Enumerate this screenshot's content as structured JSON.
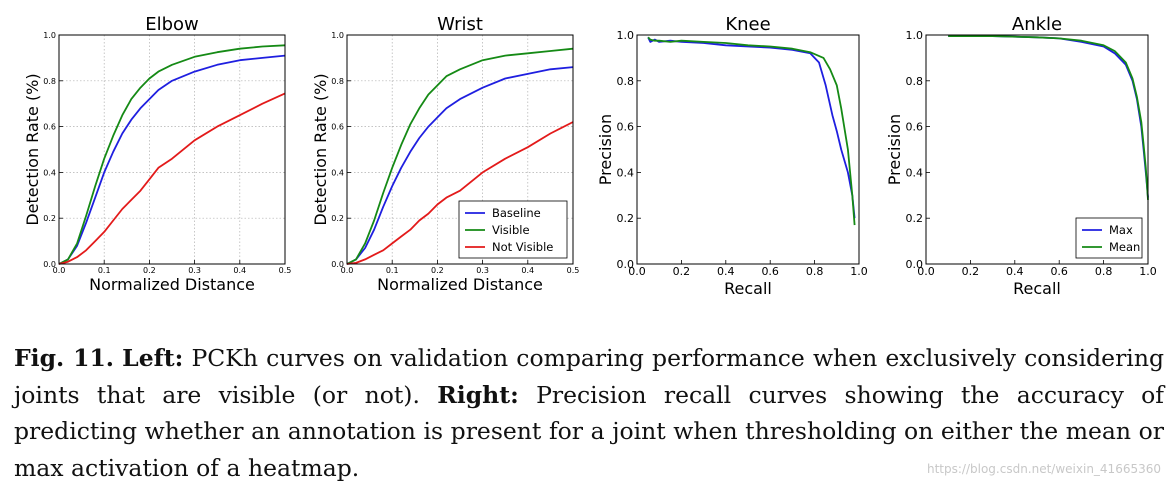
{
  "chart_data": [
    {
      "type": "line",
      "title": "Elbow",
      "xlabel": "Normalized Distance",
      "ylabel": "Detection Rate (%)",
      "xlim": [
        0,
        0.5
      ],
      "ylim": [
        0,
        1.0
      ],
      "xticks": [
        "0.0",
        "0.1",
        "0.2",
        "0.3",
        "0.4",
        "0.5"
      ],
      "yticks": [
        "0.0",
        "0.2",
        "0.4",
        "0.6",
        "0.8",
        "1.0"
      ],
      "grid": true,
      "series": [
        {
          "name": "Baseline",
          "color": "#1f1fe0",
          "points": [
            [
              0,
              0
            ],
            [
              0.02,
              0.02
            ],
            [
              0.04,
              0.08
            ],
            [
              0.06,
              0.18
            ],
            [
              0.08,
              0.29
            ],
            [
              0.1,
              0.4
            ],
            [
              0.12,
              0.49
            ],
            [
              0.14,
              0.57
            ],
            [
              0.16,
              0.63
            ],
            [
              0.18,
              0.68
            ],
            [
              0.2,
              0.72
            ],
            [
              0.22,
              0.76
            ],
            [
              0.25,
              0.8
            ],
            [
              0.3,
              0.84
            ],
            [
              0.35,
              0.87
            ],
            [
              0.4,
              0.89
            ],
            [
              0.45,
              0.9
            ],
            [
              0.5,
              0.91
            ]
          ]
        },
        {
          "name": "Visible",
          "color": "#158a15",
          "points": [
            [
              0,
              0
            ],
            [
              0.02,
              0.02
            ],
            [
              0.04,
              0.09
            ],
            [
              0.06,
              0.21
            ],
            [
              0.08,
              0.34
            ],
            [
              0.1,
              0.46
            ],
            [
              0.12,
              0.56
            ],
            [
              0.14,
              0.65
            ],
            [
              0.16,
              0.72
            ],
            [
              0.18,
              0.77
            ],
            [
              0.2,
              0.81
            ],
            [
              0.22,
              0.84
            ],
            [
              0.25,
              0.87
            ],
            [
              0.3,
              0.905
            ],
            [
              0.35,
              0.925
            ],
            [
              0.4,
              0.94
            ],
            [
              0.45,
              0.95
            ],
            [
              0.5,
              0.955
            ]
          ]
        },
        {
          "name": "Not Visible",
          "color": "#e31a1a",
          "points": [
            [
              0,
              0
            ],
            [
              0.02,
              0.01
            ],
            [
              0.04,
              0.03
            ],
            [
              0.06,
              0.06
            ],
            [
              0.08,
              0.1
            ],
            [
              0.1,
              0.14
            ],
            [
              0.12,
              0.19
            ],
            [
              0.14,
              0.24
            ],
            [
              0.16,
              0.28
            ],
            [
              0.18,
              0.32
            ],
            [
              0.2,
              0.37
            ],
            [
              0.22,
              0.42
            ],
            [
              0.25,
              0.46
            ],
            [
              0.3,
              0.54
            ],
            [
              0.35,
              0.6
            ],
            [
              0.4,
              0.65
            ],
            [
              0.45,
              0.7
            ],
            [
              0.5,
              0.745
            ]
          ]
        }
      ]
    },
    {
      "type": "line",
      "title": "Wrist",
      "xlabel": "Normalized Distance",
      "ylabel": "Detection Rate (%)",
      "xlim": [
        0,
        0.5
      ],
      "ylim": [
        0,
        1.0
      ],
      "xticks": [
        "0.0",
        "0.1",
        "0.2",
        "0.3",
        "0.4",
        "0.5"
      ],
      "yticks": [
        "0.0",
        "0.2",
        "0.4",
        "0.6",
        "0.8",
        "1.0"
      ],
      "grid": true,
      "legend": "bottom-right",
      "series": [
        {
          "name": "Baseline",
          "color": "#1f1fe0",
          "points": [
            [
              0,
              0
            ],
            [
              0.02,
              0.02
            ],
            [
              0.04,
              0.07
            ],
            [
              0.06,
              0.15
            ],
            [
              0.08,
              0.25
            ],
            [
              0.1,
              0.34
            ],
            [
              0.12,
              0.42
            ],
            [
              0.14,
              0.49
            ],
            [
              0.16,
              0.55
            ],
            [
              0.18,
              0.6
            ],
            [
              0.2,
              0.64
            ],
            [
              0.22,
              0.68
            ],
            [
              0.25,
              0.72
            ],
            [
              0.3,
              0.77
            ],
            [
              0.35,
              0.81
            ],
            [
              0.4,
              0.83
            ],
            [
              0.45,
              0.85
            ],
            [
              0.5,
              0.86
            ]
          ]
        },
        {
          "name": "Visible",
          "color": "#158a15",
          "points": [
            [
              0,
              0
            ],
            [
              0.02,
              0.02
            ],
            [
              0.04,
              0.09
            ],
            [
              0.06,
              0.19
            ],
            [
              0.08,
              0.31
            ],
            [
              0.1,
              0.42
            ],
            [
              0.12,
              0.52
            ],
            [
              0.14,
              0.61
            ],
            [
              0.16,
              0.68
            ],
            [
              0.18,
              0.74
            ],
            [
              0.2,
              0.78
            ],
            [
              0.22,
              0.82
            ],
            [
              0.25,
              0.85
            ],
            [
              0.3,
              0.89
            ],
            [
              0.35,
              0.91
            ],
            [
              0.4,
              0.92
            ],
            [
              0.45,
              0.93
            ],
            [
              0.5,
              0.94
            ]
          ]
        },
        {
          "name": "Not Visible",
          "color": "#e31a1a",
          "points": [
            [
              0,
              0
            ],
            [
              0.02,
              0.005
            ],
            [
              0.04,
              0.02
            ],
            [
              0.06,
              0.04
            ],
            [
              0.08,
              0.06
            ],
            [
              0.1,
              0.09
            ],
            [
              0.12,
              0.12
            ],
            [
              0.14,
              0.15
            ],
            [
              0.16,
              0.19
            ],
            [
              0.18,
              0.22
            ],
            [
              0.2,
              0.26
            ],
            [
              0.22,
              0.29
            ],
            [
              0.25,
              0.32
            ],
            [
              0.3,
              0.4
            ],
            [
              0.35,
              0.46
            ],
            [
              0.4,
              0.51
            ],
            [
              0.45,
              0.57
            ],
            [
              0.5,
              0.62
            ]
          ]
        }
      ]
    },
    {
      "type": "line",
      "title": "Knee",
      "xlabel": "Recall",
      "ylabel": "Precision",
      "xlim": [
        0,
        1.0
      ],
      "ylim": [
        0,
        1.0
      ],
      "xticks": [
        "0.0",
        "0.2",
        "0.4",
        "0.6",
        "0.8",
        "1.0"
      ],
      "yticks": [
        "0.0",
        "0.2",
        "0.4",
        "0.6",
        "0.8",
        "1.0"
      ],
      "grid": false,
      "series": [
        {
          "name": "Max",
          "color": "#1f1fe0",
          "points": [
            [
              0.05,
              0.99
            ],
            [
              0.06,
              0.97
            ],
            [
              0.08,
              0.98
            ],
            [
              0.1,
              0.97
            ],
            [
              0.15,
              0.975
            ],
            [
              0.2,
              0.97
            ],
            [
              0.3,
              0.965
            ],
            [
              0.4,
              0.955
            ],
            [
              0.5,
              0.95
            ],
            [
              0.6,
              0.945
            ],
            [
              0.7,
              0.935
            ],
            [
              0.78,
              0.92
            ],
            [
              0.82,
              0.88
            ],
            [
              0.85,
              0.78
            ],
            [
              0.88,
              0.65
            ],
            [
              0.9,
              0.58
            ],
            [
              0.92,
              0.5
            ],
            [
              0.95,
              0.4
            ],
            [
              0.97,
              0.3
            ],
            [
              0.98,
              0.2
            ]
          ]
        },
        {
          "name": "Mean",
          "color": "#158a15",
          "points": [
            [
              0.05,
              0.99
            ],
            [
              0.06,
              0.98
            ],
            [
              0.08,
              0.975
            ],
            [
              0.1,
              0.975
            ],
            [
              0.15,
              0.97
            ],
            [
              0.2,
              0.975
            ],
            [
              0.3,
              0.97
            ],
            [
              0.4,
              0.965
            ],
            [
              0.5,
              0.955
            ],
            [
              0.6,
              0.95
            ],
            [
              0.7,
              0.94
            ],
            [
              0.78,
              0.925
            ],
            [
              0.84,
              0.9
            ],
            [
              0.87,
              0.85
            ],
            [
              0.9,
              0.78
            ],
            [
              0.92,
              0.68
            ],
            [
              0.95,
              0.5
            ],
            [
              0.97,
              0.3
            ],
            [
              0.98,
              0.17
            ]
          ]
        }
      ]
    },
    {
      "type": "line",
      "title": "Ankle",
      "xlabel": "Recall",
      "ylabel": "Precision",
      "xlim": [
        0,
        1.0
      ],
      "ylim": [
        0,
        1.0
      ],
      "xticks": [
        "0.0",
        "0.2",
        "0.4",
        "0.6",
        "0.8",
        "1.0"
      ],
      "yticks": [
        "0.0",
        "0.2",
        "0.4",
        "0.6",
        "0.8",
        "1.0"
      ],
      "grid": false,
      "legend": "bottom-right",
      "series": [
        {
          "name": "Max",
          "color": "#1f1fe0",
          "points": [
            [
              0.1,
              0.995
            ],
            [
              0.3,
              0.995
            ],
            [
              0.5,
              0.99
            ],
            [
              0.6,
              0.985
            ],
            [
              0.7,
              0.97
            ],
            [
              0.8,
              0.95
            ],
            [
              0.85,
              0.92
            ],
            [
              0.9,
              0.87
            ],
            [
              0.93,
              0.8
            ],
            [
              0.95,
              0.72
            ],
            [
              0.97,
              0.6
            ],
            [
              0.98,
              0.5
            ],
            [
              0.99,
              0.4
            ],
            [
              1.0,
              0.29
            ]
          ]
        },
        {
          "name": "Mean",
          "color": "#158a15",
          "points": [
            [
              0.1,
              0.995
            ],
            [
              0.3,
              0.995
            ],
            [
              0.5,
              0.99
            ],
            [
              0.6,
              0.985
            ],
            [
              0.7,
              0.975
            ],
            [
              0.8,
              0.955
            ],
            [
              0.85,
              0.93
            ],
            [
              0.9,
              0.88
            ],
            [
              0.93,
              0.81
            ],
            [
              0.95,
              0.73
            ],
            [
              0.97,
              0.62
            ],
            [
              0.98,
              0.52
            ],
            [
              0.99,
              0.42
            ],
            [
              1.0,
              0.28
            ]
          ]
        }
      ]
    }
  ],
  "caption": {
    "label": "Fig. 11.",
    "left_label": "Left:",
    "left_text": "PCKh curves on validation comparing performance when exclusively considering joints that are visible (or not).",
    "right_label": "Right:",
    "right_text": "Precision recall curves showing the accuracy of predicting whether an annotation is present for a joint when thresholding on either the mean or max activation of a heatmap."
  },
  "watermark": "https://blog.csdn.net/weixin_41665360"
}
